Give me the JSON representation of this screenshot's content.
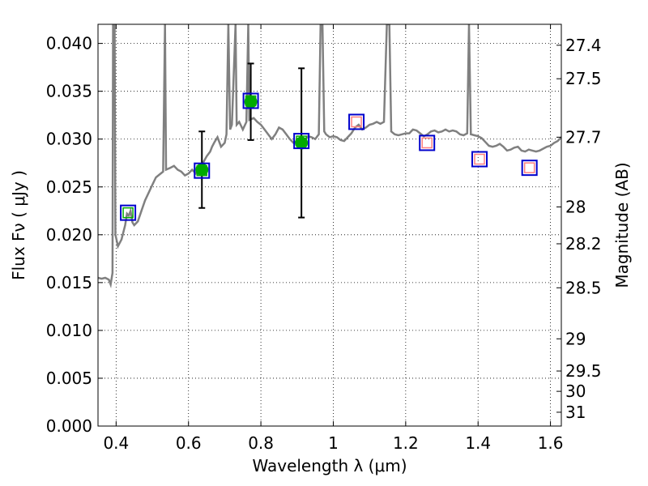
{
  "chart_data": {
    "type": "scatter",
    "xlabel": "Wavelength  λ (μm)",
    "ylabel": "Flux  Fν  ( μJy )",
    "y2label": "Magnitude (AB)",
    "xlim": [
      0.35,
      1.63
    ],
    "ylim": [
      0.0,
      0.042
    ],
    "grid": true,
    "x_ticks": [
      {
        "v": 0.4,
        "label": "0.4"
      },
      {
        "v": 0.6,
        "label": "0.6"
      },
      {
        "v": 0.8,
        "label": "0.8"
      },
      {
        "v": 1.0,
        "label": "1"
      },
      {
        "v": 1.2,
        "label": "1.2"
      },
      {
        "v": 1.4,
        "label": "1.4"
      },
      {
        "v": 1.6,
        "label": "1.6"
      }
    ],
    "y_ticks": [
      {
        "v": 0.0,
        "label": "0.000"
      },
      {
        "v": 0.005,
        "label": "0.005"
      },
      {
        "v": 0.01,
        "label": "0.010"
      },
      {
        "v": 0.015,
        "label": "0.015"
      },
      {
        "v": 0.02,
        "label": "0.020"
      },
      {
        "v": 0.025,
        "label": "0.025"
      },
      {
        "v": 0.03,
        "label": "0.030"
      },
      {
        "v": 0.035,
        "label": "0.035"
      },
      {
        "v": 0.04,
        "label": "0.040"
      }
    ],
    "mag_ticks": [
      {
        "mag": 27.4,
        "label": "27.4"
      },
      {
        "mag": 27.5,
        "label": "27.5"
      },
      {
        "mag": 27.7,
        "label": "27.7"
      },
      {
        "mag": 28.0,
        "label": "28"
      },
      {
        "mag": 28.2,
        "label": "28.2"
      },
      {
        "mag": 28.5,
        "label": "28.5"
      },
      {
        "mag": 29.0,
        "label": "29"
      },
      {
        "mag": 29.5,
        "label": "29.5"
      },
      {
        "mag": 30.0,
        "label": "30"
      },
      {
        "mag": 31.0,
        "label": "31"
      }
    ],
    "colors": {
      "spectrum": "#808080",
      "observed": "#00aa00",
      "model_box": "#0000cc",
      "model_inner": "#00aa00",
      "model_inner_nir": "#ff7f7f",
      "errorbar": "#000000"
    },
    "spectrum": [
      [
        0.35,
        0.0155
      ],
      [
        0.36,
        0.0154
      ],
      [
        0.37,
        0.0155
      ],
      [
        0.38,
        0.0153
      ],
      [
        0.385,
        0.0148
      ],
      [
        0.39,
        0.016
      ],
      [
        0.392,
        0.05
      ],
      [
        0.395,
        0.05
      ],
      [
        0.398,
        0.02
      ],
      [
        0.405,
        0.0188
      ],
      [
        0.415,
        0.0195
      ],
      [
        0.425,
        0.021
      ],
      [
        0.43,
        0.0222
      ],
      [
        0.435,
        0.022
      ],
      [
        0.44,
        0.0225
      ],
      [
        0.445,
        0.0213
      ],
      [
        0.45,
        0.021
      ],
      [
        0.46,
        0.0214
      ],
      [
        0.47,
        0.0225
      ],
      [
        0.48,
        0.0236
      ],
      [
        0.49,
        0.0244
      ],
      [
        0.5,
        0.0252
      ],
      [
        0.51,
        0.026
      ],
      [
        0.52,
        0.0263
      ],
      [
        0.53,
        0.0266
      ],
      [
        0.535,
        0.042
      ],
      [
        0.538,
        0.0268
      ],
      [
        0.55,
        0.027
      ],
      [
        0.56,
        0.0272
      ],
      [
        0.57,
        0.0268
      ],
      [
        0.58,
        0.0266
      ],
      [
        0.59,
        0.0262
      ],
      [
        0.6,
        0.0264
      ],
      [
        0.61,
        0.0268
      ],
      [
        0.62,
        0.0264
      ],
      [
        0.63,
        0.0268
      ],
      [
        0.64,
        0.0275
      ],
      [
        0.65,
        0.0282
      ],
      [
        0.66,
        0.0287
      ],
      [
        0.665,
        0.0292
      ],
      [
        0.672,
        0.0297
      ],
      [
        0.68,
        0.0302
      ],
      [
        0.69,
        0.0292
      ],
      [
        0.7,
        0.0296
      ],
      [
        0.705,
        0.0305
      ],
      [
        0.71,
        0.042
      ],
      [
        0.715,
        0.031
      ],
      [
        0.72,
        0.0315
      ],
      [
        0.73,
        0.042
      ],
      [
        0.733,
        0.0315
      ],
      [
        0.74,
        0.0318
      ],
      [
        0.75,
        0.031
      ],
      [
        0.76,
        0.0318
      ],
      [
        0.765,
        0.042
      ],
      [
        0.768,
        0.032
      ],
      [
        0.78,
        0.0322
      ],
      [
        0.79,
        0.0318
      ],
      [
        0.8,
        0.0315
      ],
      [
        0.81,
        0.031
      ],
      [
        0.82,
        0.0305
      ],
      [
        0.83,
        0.03
      ],
      [
        0.84,
        0.0305
      ],
      [
        0.85,
        0.0312
      ],
      [
        0.86,
        0.031
      ],
      [
        0.87,
        0.0305
      ],
      [
        0.88,
        0.03
      ],
      [
        0.89,
        0.0296
      ],
      [
        0.9,
        0.0298
      ],
      [
        0.91,
        0.0295
      ],
      [
        0.92,
        0.0298
      ],
      [
        0.93,
        0.0303
      ],
      [
        0.94,
        0.0302
      ],
      [
        0.95,
        0.03
      ],
      [
        0.96,
        0.0305
      ],
      [
        0.965,
        0.042
      ],
      [
        0.97,
        0.042
      ],
      [
        0.975,
        0.0308
      ],
      [
        0.98,
        0.0305
      ],
      [
        0.99,
        0.0302
      ],
      [
        1.0,
        0.0303
      ],
      [
        1.01,
        0.0302
      ],
      [
        1.02,
        0.0299
      ],
      [
        1.03,
        0.0298
      ],
      [
        1.04,
        0.0302
      ],
      [
        1.05,
        0.0306
      ],
      [
        1.06,
        0.0312
      ],
      [
        1.07,
        0.0315
      ],
      [
        1.08,
        0.031
      ],
      [
        1.09,
        0.0312
      ],
      [
        1.1,
        0.0315
      ],
      [
        1.11,
        0.0316
      ],
      [
        1.12,
        0.0318
      ],
      [
        1.13,
        0.0316
      ],
      [
        1.14,
        0.0318
      ],
      [
        1.148,
        0.042
      ],
      [
        1.155,
        0.042
      ],
      [
        1.16,
        0.0308
      ],
      [
        1.17,
        0.0305
      ],
      [
        1.18,
        0.0304
      ],
      [
        1.19,
        0.0305
      ],
      [
        1.2,
        0.0306
      ],
      [
        1.21,
        0.0306
      ],
      [
        1.22,
        0.031
      ],
      [
        1.23,
        0.0309
      ],
      [
        1.24,
        0.0306
      ],
      [
        1.25,
        0.0303
      ],
      [
        1.26,
        0.0305
      ],
      [
        1.27,
        0.0308
      ],
      [
        1.28,
        0.0309
      ],
      [
        1.29,
        0.0307
      ],
      [
        1.3,
        0.0308
      ],
      [
        1.31,
        0.031
      ],
      [
        1.32,
        0.0308
      ],
      [
        1.33,
        0.0309
      ],
      [
        1.34,
        0.0308
      ],
      [
        1.35,
        0.0305
      ],
      [
        1.36,
        0.0304
      ],
      [
        1.37,
        0.0306
      ],
      [
        1.375,
        0.042
      ],
      [
        1.38,
        0.0305
      ],
      [
        1.39,
        0.0304
      ],
      [
        1.4,
        0.0303
      ],
      [
        1.41,
        0.0301
      ],
      [
        1.42,
        0.0297
      ],
      [
        1.43,
        0.0293
      ],
      [
        1.44,
        0.0292
      ],
      [
        1.45,
        0.0293
      ],
      [
        1.46,
        0.0295
      ],
      [
        1.47,
        0.0292
      ],
      [
        1.48,
        0.0288
      ],
      [
        1.49,
        0.0289
      ],
      [
        1.5,
        0.0291
      ],
      [
        1.51,
        0.0292
      ],
      [
        1.52,
        0.0288
      ],
      [
        1.53,
        0.0287
      ],
      [
        1.54,
        0.0289
      ],
      [
        1.55,
        0.0288
      ],
      [
        1.56,
        0.0287
      ],
      [
        1.57,
        0.0288
      ],
      [
        1.58,
        0.029
      ],
      [
        1.59,
        0.0292
      ],
      [
        1.6,
        0.0293
      ],
      [
        1.61,
        0.0296
      ],
      [
        1.62,
        0.0298
      ],
      [
        1.63,
        0.0302
      ]
    ],
    "observed": [
      {
        "x": 0.637,
        "y": 0.0268,
        "err": 0.004
      },
      {
        "x": 0.772,
        "y": 0.0339,
        "err": 0.004
      },
      {
        "x": 0.912,
        "y": 0.0296,
        "err": 0.0078
      }
    ],
    "model": [
      {
        "x": 0.433,
        "y": 0.0223,
        "band": "optical"
      },
      {
        "x": 0.637,
        "y": 0.0267,
        "band": "optical"
      },
      {
        "x": 0.772,
        "y": 0.034,
        "band": "optical"
      },
      {
        "x": 0.912,
        "y": 0.0298,
        "band": "optical"
      },
      {
        "x": 1.064,
        "y": 0.0318,
        "band": "nir"
      },
      {
        "x": 1.259,
        "y": 0.0296,
        "band": "nir"
      },
      {
        "x": 1.404,
        "y": 0.0279,
        "band": "nir"
      },
      {
        "x": 1.542,
        "y": 0.027,
        "band": "nir"
      }
    ]
  }
}
